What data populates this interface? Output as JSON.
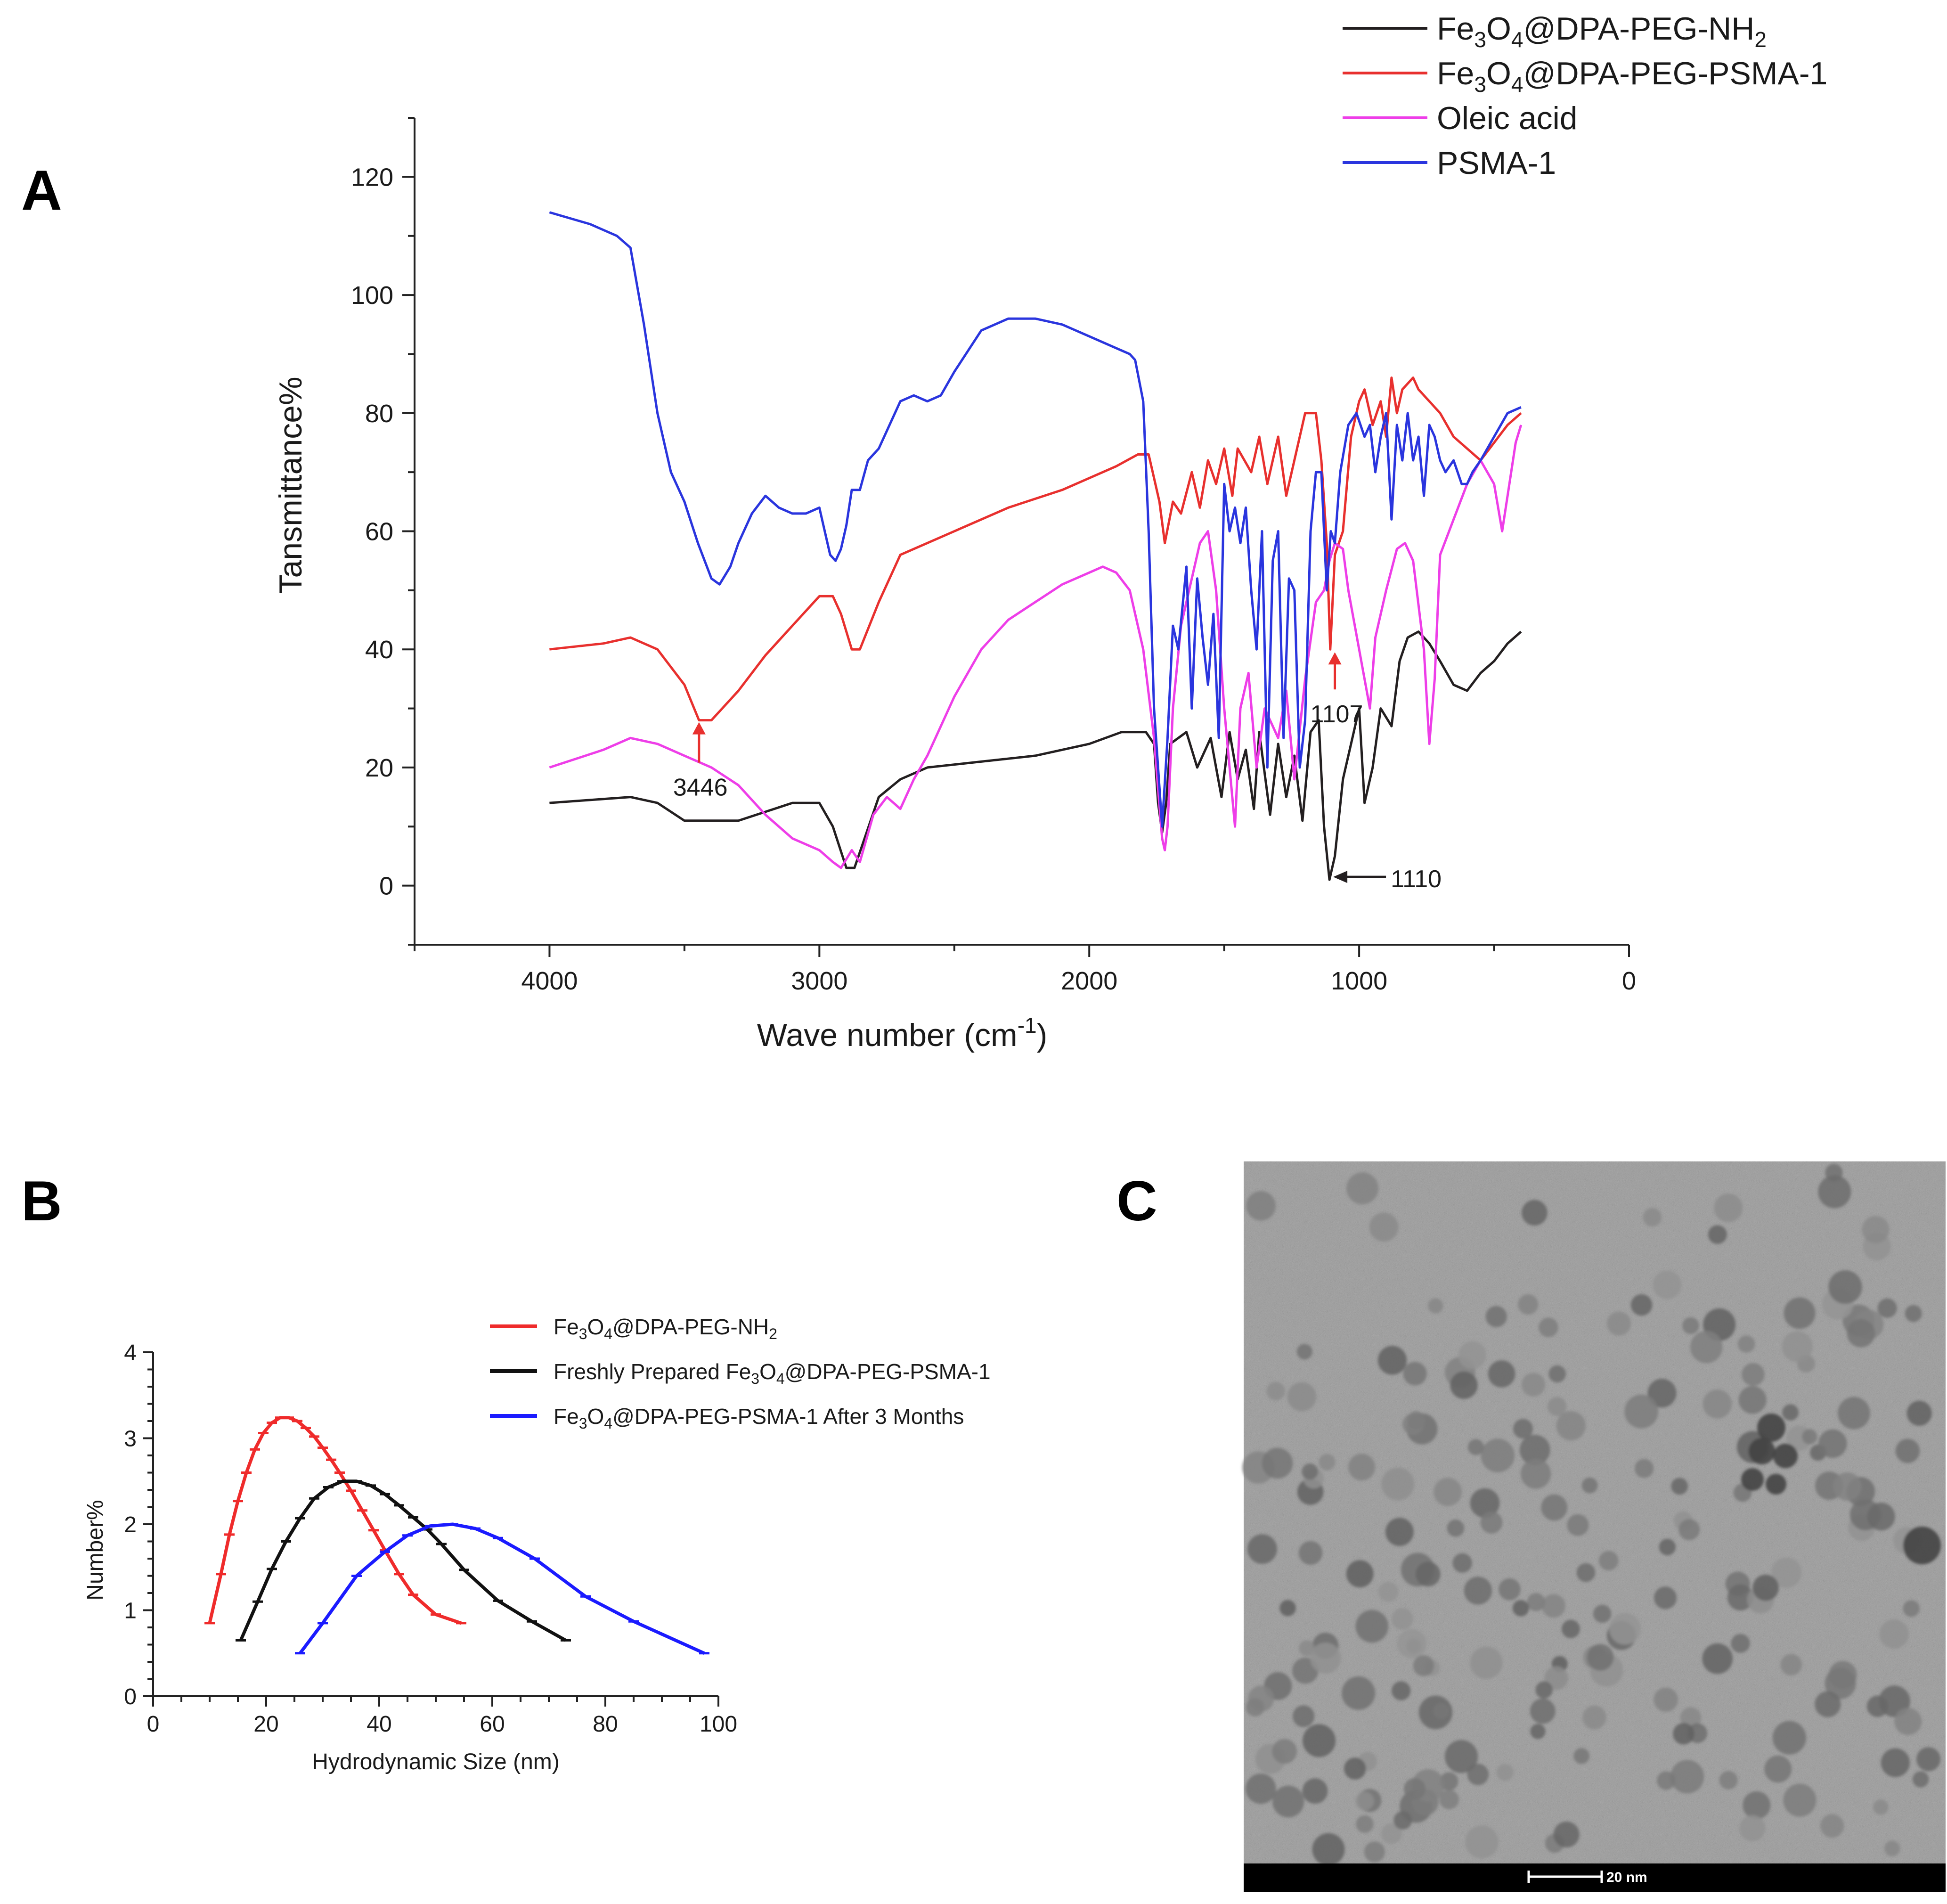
{
  "panels": {
    "A": "A",
    "B": "B",
    "C": "C"
  },
  "chart_data": [
    {
      "panel": "A",
      "type": "line",
      "xlabel": "Wave number (cm-1)",
      "xlabel_main": "Wave number (cm",
      "xlabel_sup": "-1",
      "xlabel_tail": ")",
      "ylabel": "Tansmittance%",
      "xlim": [
        4500,
        0
      ],
      "ylim": [
        -10,
        130
      ],
      "x_reversed": true,
      "xticks": [
        4000,
        3000,
        2000,
        1000,
        0
      ],
      "yticks": [
        0,
        20,
        40,
        60,
        80,
        100,
        120
      ],
      "legend_position": "top-right",
      "series": [
        {
          "name": "Fe3O4@DPA-PEG-NH2",
          "color": "#231f20",
          "x": [
            4000,
            3700,
            3600,
            3500,
            3300,
            3100,
            3000,
            2950,
            2900,
            2870,
            2780,
            2700,
            2600,
            2400,
            2200,
            2000,
            1880,
            1790,
            1760,
            1745,
            1730,
            1715,
            1700,
            1640,
            1600,
            1550,
            1510,
            1480,
            1450,
            1420,
            1390,
            1370,
            1330,
            1300,
            1270,
            1240,
            1210,
            1180,
            1150,
            1130,
            1110,
            1090,
            1060,
            1020,
            1000,
            980,
            950,
            920,
            880,
            850,
            820,
            780,
            740,
            700,
            650,
            600,
            550,
            500,
            450,
            400
          ],
          "y": [
            14,
            15,
            14,
            11,
            11,
            14,
            14,
            10,
            3,
            3,
            15,
            18,
            20,
            21,
            22,
            24,
            26,
            26,
            24,
            14,
            9,
            14,
            24,
            26,
            20,
            25,
            15,
            26,
            18,
            23,
            13,
            26,
            12,
            24,
            15,
            22,
            11,
            26,
            28,
            10,
            1,
            5,
            18,
            26,
            30,
            14,
            20,
            30,
            27,
            38,
            42,
            43,
            41,
            38,
            34,
            33,
            36,
            38,
            41,
            43
          ]
        },
        {
          "name": "Fe3O4@DPA-PEG-PSMA-1",
          "color": "#e8302e",
          "x": [
            4000,
            3800,
            3700,
            3600,
            3500,
            3446,
            3400,
            3300,
            3200,
            3100,
            3000,
            2950,
            2920,
            2880,
            2850,
            2780,
            2700,
            2500,
            2300,
            2100,
            1900,
            1820,
            1780,
            1740,
            1720,
            1690,
            1660,
            1620,
            1590,
            1560,
            1530,
            1500,
            1470,
            1450,
            1400,
            1370,
            1340,
            1300,
            1270,
            1240,
            1200,
            1160,
            1140,
            1120,
            1107,
            1090,
            1060,
            1030,
            1000,
            980,
            950,
            920,
            900,
            880,
            860,
            840,
            800,
            780,
            740,
            700,
            650,
            600,
            550,
            500,
            450,
            400
          ],
          "y": [
            40,
            41,
            42,
            40,
            34,
            28,
            28,
            33,
            39,
            44,
            49,
            49,
            46,
            40,
            40,
            48,
            56,
            60,
            64,
            67,
            71,
            73,
            73,
            65,
            58,
            65,
            63,
            70,
            64,
            72,
            68,
            74,
            66,
            74,
            70,
            76,
            68,
            76,
            66,
            72,
            80,
            80,
            72,
            58,
            40,
            56,
            60,
            76,
            82,
            84,
            78,
            82,
            76,
            86,
            80,
            84,
            86,
            84,
            82,
            80,
            76,
            74,
            72,
            75,
            78,
            80
          ]
        },
        {
          "name": "Oleic acid",
          "color": "#ee3ee8",
          "x": [
            4000,
            3800,
            3700,
            3600,
            3500,
            3400,
            3300,
            3200,
            3100,
            3000,
            2950,
            2920,
            2880,
            2850,
            2800,
            2750,
            2700,
            2650,
            2600,
            2500,
            2400,
            2300,
            2200,
            2100,
            2000,
            1950,
            1900,
            1850,
            1800,
            1760,
            1730,
            1720,
            1710,
            1690,
            1660,
            1620,
            1590,
            1560,
            1530,
            1500,
            1480,
            1460,
            1440,
            1410,
            1380,
            1350,
            1300,
            1270,
            1240,
            1200,
            1160,
            1130,
            1110,
            1090,
            1060,
            1040,
            1000,
            960,
            940,
            900,
            860,
            830,
            800,
            760,
            740,
            720,
            700,
            650,
            600,
            550,
            500,
            470,
            450,
            420,
            400
          ],
          "y": [
            20,
            23,
            25,
            24,
            22,
            20,
            17,
            12,
            8,
            6,
            4,
            3,
            6,
            4,
            12,
            15,
            13,
            18,
            22,
            32,
            40,
            45,
            48,
            51,
            53,
            54,
            53,
            50,
            40,
            25,
            8,
            6,
            10,
            30,
            44,
            52,
            58,
            60,
            50,
            30,
            20,
            10,
            30,
            36,
            20,
            30,
            25,
            33,
            18,
            35,
            48,
            50,
            55,
            58,
            57,
            50,
            40,
            30,
            42,
            50,
            57,
            58,
            55,
            40,
            24,
            35,
            56,
            62,
            68,
            72,
            68,
            60,
            66,
            75,
            78
          ]
        },
        {
          "name": "PSMA-1",
          "color": "#2a35de",
          "x": [
            4000,
            3850,
            3750,
            3700,
            3650,
            3600,
            3550,
            3500,
            3450,
            3400,
            3370,
            3330,
            3300,
            3250,
            3200,
            3150,
            3100,
            3050,
            3000,
            2960,
            2940,
            2920,
            2900,
            2880,
            2850,
            2820,
            2780,
            2700,
            2650,
            2600,
            2550,
            2500,
            2400,
            2300,
            2200,
            2100,
            2000,
            1900,
            1850,
            1830,
            1800,
            1780,
            1760,
            1745,
            1730,
            1710,
            1690,
            1670,
            1640,
            1620,
            1600,
            1580,
            1560,
            1540,
            1520,
            1500,
            1480,
            1460,
            1440,
            1420,
            1400,
            1380,
            1360,
            1340,
            1320,
            1300,
            1280,
            1260,
            1240,
            1220,
            1200,
            1180,
            1160,
            1140,
            1120,
            1105,
            1090,
            1070,
            1040,
            1010,
            980,
            960,
            940,
            920,
            900,
            880,
            860,
            840,
            820,
            800,
            780,
            760,
            740,
            720,
            700,
            680,
            650,
            620,
            600,
            580,
            550,
            500,
            450,
            400
          ],
          "y": [
            114,
            112,
            110,
            108,
            95,
            80,
            70,
            65,
            58,
            52,
            51,
            54,
            58,
            63,
            66,
            64,
            63,
            63,
            64,
            56,
            55,
            57,
            61,
            67,
            67,
            72,
            74,
            82,
            83,
            82,
            83,
            87,
            94,
            96,
            96,
            95,
            93,
            91,
            90,
            89,
            82,
            60,
            30,
            20,
            10,
            25,
            44,
            40,
            54,
            30,
            52,
            42,
            34,
            46,
            25,
            68,
            60,
            64,
            58,
            64,
            50,
            40,
            60,
            20,
            55,
            60,
            25,
            52,
            50,
            20,
            28,
            60,
            70,
            70,
            50,
            60,
            58,
            70,
            78,
            80,
            76,
            78,
            70,
            76,
            80,
            62,
            78,
            72,
            80,
            72,
            76,
            66,
            78,
            76,
            72,
            70,
            72,
            68,
            68,
            70,
            72,
            76,
            80,
            81
          ]
        }
      ],
      "annotations": [
        {
          "label": "3446",
          "x": 3446,
          "y": 28,
          "color": "#e8302e"
        },
        {
          "label": "1107",
          "x": 1090,
          "y": 40,
          "color": "#e8302e"
        },
        {
          "label": "1110",
          "x": 1110,
          "y": 1,
          "color": "#231f20"
        }
      ]
    },
    {
      "panel": "B",
      "type": "line",
      "xlabel": "Hydrodynamic Size (nm)",
      "ylabel": "Number%",
      "xlim": [
        0,
        100
      ],
      "ylim": [
        0,
        4
      ],
      "xticks": [
        0,
        20,
        40,
        60,
        80,
        100
      ],
      "yticks": [
        0,
        1,
        2,
        3,
        4
      ],
      "legend_position": "top-right",
      "series": [
        {
          "name": "Fe3O4@DPA-PEG-NH2",
          "color": "#ef2b2b",
          "x": [
            10,
            12,
            13.5,
            15,
            16.5,
            18,
            19.5,
            21,
            22.5,
            24,
            25.5,
            27,
            28.5,
            30,
            31.5,
            33,
            35,
            37,
            39,
            41,
            43.5,
            46,
            50,
            54.5
          ],
          "y": [
            0.85,
            1.42,
            1.88,
            2.27,
            2.6,
            2.87,
            3.06,
            3.18,
            3.24,
            3.24,
            3.2,
            3.12,
            3.02,
            2.89,
            2.75,
            2.6,
            2.39,
            2.16,
            1.93,
            1.7,
            1.42,
            1.18,
            0.95,
            0.85
          ]
        },
        {
          "name": "Freshly Prepared Fe3O4@DPA-PEG-PSMA-1",
          "color": "#111111",
          "x": [
            15.5,
            18.5,
            21,
            23.5,
            26,
            28.5,
            31,
            33.5,
            36,
            38.5,
            41,
            43.5,
            46,
            48.5,
            51,
            55,
            61,
            67,
            73
          ],
          "y": [
            0.65,
            1.1,
            1.48,
            1.8,
            2.07,
            2.3,
            2.43,
            2.5,
            2.5,
            2.45,
            2.35,
            2.22,
            2.08,
            1.94,
            1.77,
            1.47,
            1.11,
            0.87,
            0.65
          ]
        },
        {
          "name": "Fe3O4@DPA-PEG-PSMA-1 After 3 Months",
          "color": "#1b1bff",
          "x": [
            26,
            30,
            36,
            41,
            45,
            49,
            53,
            57,
            61,
            67.5,
            76.5,
            85,
            97.5
          ],
          "y": [
            0.5,
            0.85,
            1.4,
            1.68,
            1.87,
            1.98,
            2,
            1.95,
            1.84,
            1.6,
            1.16,
            0.87,
            0.5
          ]
        }
      ]
    }
  ],
  "legend_A": [
    {
      "main": "Fe",
      "sub1": "3",
      "mid": "O",
      "sub2": "4",
      "tail": "@DPA-PEG-NH",
      "sub3": "2",
      "color": "#231f20"
    },
    {
      "main": "Fe",
      "sub1": "3",
      "mid": "O",
      "sub2": "4",
      "tail": "@DPA-PEG-PSMA-1",
      "sub3": "",
      "color": "#e8302e"
    },
    {
      "main": "Oleic acid",
      "sub1": "",
      "mid": "",
      "sub2": "",
      "tail": "",
      "sub3": "",
      "color": "#ee3ee8"
    },
    {
      "main": "PSMA-1",
      "sub1": "",
      "mid": "",
      "sub2": "",
      "tail": "",
      "sub3": "",
      "color": "#2a35de"
    }
  ],
  "legend_B": [
    {
      "pre": "",
      "main": "Fe",
      "sub1": "3",
      "mid": "O",
      "sub2": "4",
      "tail": "@DPA-PEG-NH",
      "sub3": "2",
      "color": "#ef2b2b"
    },
    {
      "pre": "Freshly Prepared ",
      "main": "Fe",
      "sub1": "3",
      "mid": "O",
      "sub2": "4",
      "tail": "@DPA-PEG-PSMA-1",
      "sub3": "",
      "color": "#111111"
    },
    {
      "pre": "",
      "main": "Fe",
      "sub1": "3",
      "mid": "O",
      "sub2": "4",
      "tail": "@DPA-PEG-PSMA-1 After 3 Months",
      "sub3": "",
      "color": "#1b1bff"
    }
  ],
  "panelC": {
    "scale_bar_label": "20 nm",
    "background": "#a9a9a9"
  }
}
